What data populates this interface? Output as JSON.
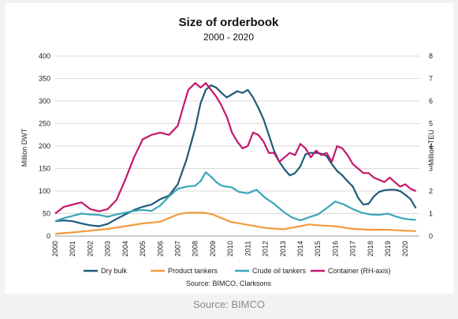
{
  "caption": "Source: BIMCO",
  "chart_data": {
    "type": "line",
    "title": "Size of orderbook",
    "subtitle": "2000 - 2020",
    "ylabel": "Million DWT",
    "y2label": "Million TEU",
    "ylim": [
      0,
      400
    ],
    "y2lim": [
      0,
      8
    ],
    "yticks": [
      "0",
      "50",
      "100",
      "150",
      "200",
      "250",
      "300",
      "350",
      "400"
    ],
    "y2ticks": [
      "0",
      "1",
      "2",
      "3",
      "4",
      "5",
      "6",
      "7",
      "8"
    ],
    "xlim": [
      2000,
      2020.8
    ],
    "xticks": [
      "2000",
      "2001",
      "2002",
      "2003",
      "2004",
      "2005",
      "2006",
      "2007",
      "2008",
      "2009",
      "2010",
      "2011",
      "2012",
      "2013",
      "2014",
      "2015",
      "2016",
      "2017",
      "2018",
      "2019",
      "2020"
    ],
    "grid": "horizontal",
    "legend_position": "bottom",
    "source": "Source: BIMCO, Clarksons",
    "series": [
      {
        "name": "Dry bulk",
        "color": "#1f5a7a",
        "axis": "left",
        "x": [
          2000,
          2000.5,
          2001,
          2001.5,
          2002,
          2002.5,
          2003,
          2003.5,
          2004,
          2004.5,
          2005,
          2005.5,
          2006,
          2006.5,
          2007,
          2007.5,
          2008,
          2008.3,
          2008.6,
          2008.9,
          2009.2,
          2009.5,
          2009.8,
          2010.1,
          2010.4,
          2010.7,
          2011,
          2011.3,
          2011.6,
          2011.9,
          2012.2,
          2012.5,
          2012.8,
          2013.1,
          2013.4,
          2013.7,
          2014,
          2014.3,
          2014.6,
          2014.9,
          2015.2,
          2015.5,
          2015.8,
          2016.1,
          2016.4,
          2016.7,
          2017,
          2017.3,
          2017.6,
          2017.9,
          2018.2,
          2018.5,
          2018.8,
          2019.1,
          2019.4,
          2019.7,
          2020,
          2020.3,
          2020.6
        ],
        "values": [
          33,
          35,
          33,
          28,
          24,
          22,
          27,
          38,
          48,
          58,
          65,
          70,
          82,
          90,
          115,
          170,
          240,
          295,
          325,
          335,
          330,
          318,
          308,
          315,
          322,
          318,
          325,
          308,
          285,
          260,
          225,
          190,
          165,
          148,
          135,
          140,
          155,
          182,
          185,
          185,
          183,
          178,
          160,
          145,
          135,
          122,
          110,
          85,
          70,
          72,
          88,
          98,
          102,
          103,
          103,
          100,
          92,
          82,
          62
        ]
      },
      {
        "name": "Product tankers",
        "color": "#f39a3c",
        "axis": "left",
        "x": [
          2000,
          2001,
          2002,
          2003,
          2004,
          2005,
          2006,
          2006.5,
          2007,
          2007.5,
          2008,
          2008.5,
          2009,
          2009.5,
          2010,
          2011,
          2012,
          2013,
          2014,
          2014.5,
          2015,
          2016,
          2017,
          2018,
          2019,
          2020,
          2020.6
        ],
        "values": [
          5,
          8,
          12,
          16,
          22,
          28,
          32,
          40,
          48,
          52,
          52,
          52,
          48,
          40,
          32,
          25,
          18,
          15,
          22,
          26,
          24,
          22,
          16,
          14,
          14,
          12,
          11
        ]
      },
      {
        "name": "Crude oil tankers",
        "color": "#3aa6b9",
        "axis": "left",
        "x": [
          2000,
          2000.5,
          2001,
          2001.5,
          2002,
          2002.5,
          2003,
          2003.5,
          2004,
          2004.5,
          2005,
          2005.5,
          2006,
          2006.5,
          2007,
          2007.5,
          2008,
          2008.3,
          2008.6,
          2008.9,
          2009.2,
          2009.5,
          2009.8,
          2010.1,
          2010.5,
          2011,
          2011.5,
          2012,
          2012.5,
          2013,
          2013.5,
          2014,
          2014.5,
          2015,
          2015.5,
          2016,
          2016.5,
          2017,
          2017.5,
          2018,
          2018.5,
          2019,
          2019.5,
          2020,
          2020.6
        ],
        "values": [
          33,
          40,
          45,
          50,
          48,
          47,
          43,
          48,
          52,
          56,
          58,
          56,
          68,
          88,
          105,
          110,
          112,
          122,
          142,
          132,
          120,
          112,
          110,
          108,
          98,
          95,
          103,
          85,
          72,
          55,
          42,
          35,
          42,
          48,
          62,
          77,
          70,
          60,
          52,
          48,
          47,
          50,
          43,
          38,
          36
        ]
      },
      {
        "name": "Container (RH-axis)",
        "color": "#c4176b",
        "axis": "right",
        "x": [
          2000,
          2000.5,
          2001,
          2001.5,
          2002,
          2002.5,
          2003,
          2003.5,
          2004,
          2004.5,
          2005,
          2005.5,
          2006,
          2006.5,
          2007,
          2007.3,
          2007.6,
          2008,
          2008.3,
          2008.6,
          2008.9,
          2009.2,
          2009.5,
          2009.8,
          2010.1,
          2010.4,
          2010.7,
          2011,
          2011.3,
          2011.6,
          2011.9,
          2012.2,
          2012.5,
          2012.8,
          2013.1,
          2013.4,
          2013.7,
          2014,
          2014.3,
          2014.6,
          2014.9,
          2015.2,
          2015.5,
          2015.8,
          2016.1,
          2016.4,
          2016.7,
          2017,
          2017.3,
          2017.6,
          2017.9,
          2018.2,
          2018.5,
          2018.8,
          2019.1,
          2019.4,
          2019.7,
          2020,
          2020.3,
          2020.6
        ],
        "values": [
          1.0,
          1.3,
          1.4,
          1.5,
          1.2,
          1.1,
          1.2,
          1.6,
          2.5,
          3.5,
          4.3,
          4.5,
          4.6,
          4.5,
          4.9,
          5.7,
          6.5,
          6.8,
          6.6,
          6.8,
          6.5,
          6.2,
          5.8,
          5.3,
          4.6,
          4.2,
          3.9,
          4.0,
          4.6,
          4.5,
          4.2,
          3.7,
          3.7,
          3.3,
          3.5,
          3.7,
          3.6,
          4.1,
          3.9,
          3.5,
          3.8,
          3.6,
          3.7,
          3.3,
          4.0,
          3.9,
          3.6,
          3.2,
          3.0,
          2.8,
          2.8,
          2.6,
          2.5,
          2.4,
          2.6,
          2.4,
          2.2,
          2.3,
          2.1,
          2.0
        ]
      }
    ]
  }
}
